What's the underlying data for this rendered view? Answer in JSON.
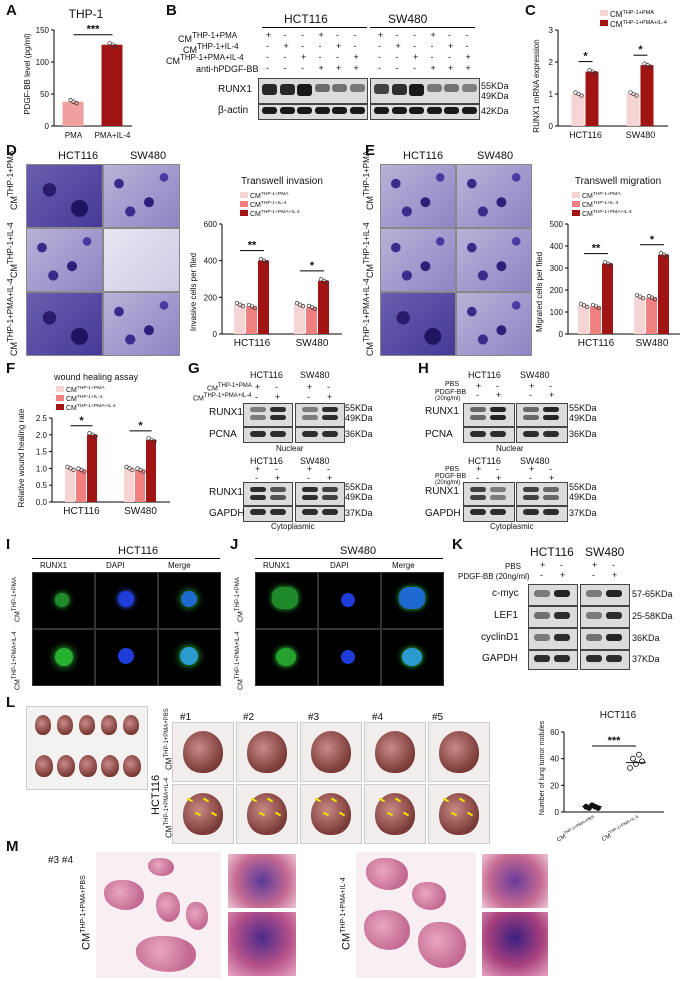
{
  "panels": {
    "A": {
      "label": "A",
      "title": "THP-1",
      "ylabel": "PDGF-BB level (pg/ml)",
      "yticks": [
        "0",
        "50",
        "100",
        "150"
      ],
      "sig": "***"
    },
    "B": {
      "label": "B",
      "lines": [
        "HCT116",
        "SW480"
      ],
      "rows": [
        "CMTHP-1+PMA",
        "CMTHP-1+IL-4",
        "CMTHP-1+PMA+IL-4",
        "anti-hPDGF-BB"
      ],
      "row_cm": [
        "CM",
        "CM",
        "CM"
      ],
      "row_sup": [
        "THP-1+PMA",
        "THP-1+IL-4",
        "THP-1+PMA+IL-4"
      ],
      "row4": "anti-hPDGF-BB",
      "signs": [
        [
          "+",
          "-",
          "-",
          "+",
          "-",
          "-",
          "+",
          "-",
          "-",
          "+",
          "-",
          "-"
        ],
        [
          "-",
          "+",
          "-",
          "-",
          "+",
          "-",
          "-",
          "+",
          "-",
          "-",
          "+",
          "-"
        ],
        [
          "-",
          "-",
          "+",
          "-",
          "-",
          "+",
          "-",
          "-",
          "+",
          "-",
          "-",
          "+"
        ],
        [
          "-",
          "-",
          "-",
          "+",
          "+",
          "+",
          "-",
          "-",
          "-",
          "+",
          "+",
          "+"
        ]
      ],
      "proteins": [
        "RUNX1",
        "β-actin"
      ],
      "sizes": [
        "55KDa",
        "49KDa",
        "42KDa"
      ]
    },
    "C": {
      "label": "C",
      "ylabel": "RUNX1 mRNA expression",
      "yticks": [
        "0",
        "1",
        "2",
        "3"
      ],
      "legend": [
        "THP-1+PMA",
        "THP-1+PMA+IL-4"
      ],
      "categories": [
        "HCT116",
        "SW480"
      ],
      "sig": [
        "*",
        "*"
      ]
    },
    "D": {
      "label": "D",
      "cols": [
        "HCT116",
        "SW480"
      ],
      "row_sup": [
        "THP-1+PMA",
        "THP-1+IL-4",
        "THP-1+PMA+IL-4"
      ],
      "chart_title": "Transwell invasion",
      "ylabel": "Invasive cells per filed",
      "yticks": [
        "0",
        "200",
        "400",
        "600"
      ],
      "legend": [
        "THP-1+PMA",
        "THP-1+IL-4",
        "THP-1+PMA+IL-4"
      ],
      "categories": [
        "HCT116",
        "SW480"
      ],
      "sig": [
        "**",
        "*"
      ]
    },
    "E": {
      "label": "E",
      "cols": [
        "HCT116",
        "SW480"
      ],
      "row_sup": [
        "THP-1+PMA",
        "THP-1+IL-4",
        "THP-1+PMA+IL-4"
      ],
      "chart_title": "Transwell migration",
      "ylabel": "Migrated cells per filed",
      "yticks": [
        "0",
        "100",
        "200",
        "300",
        "400",
        "500"
      ],
      "legend": [
        "THP-1+PMA",
        "THP-1+IL-4",
        "THP-1+PMA+IL-4"
      ],
      "categories": [
        "HCT116",
        "SW480"
      ],
      "sig": [
        "**",
        "*"
      ]
    },
    "F": {
      "label": "F",
      "chart_title": "wound healing assay",
      "ylabel": "Relative wound healing rate",
      "yticks": [
        "0.0",
        "0.5",
        "1.0",
        "1.5",
        "2.0",
        "2.5"
      ],
      "legend": [
        "THP-1+PMA",
        "THP-1+IL-4",
        "THP-1+PMA+IL-4"
      ],
      "categories": [
        "HCT116",
        "SW480"
      ],
      "sig": [
        "*",
        "*"
      ]
    },
    "G": {
      "label": "G",
      "lines": [
        "HCT116",
        "SW480"
      ],
      "rows_sup": [
        "THP-1+PMA",
        "THP-1+PMA+IL-4"
      ],
      "signs_nuc": [
        [
          "+",
          "-",
          "+",
          "-"
        ],
        [
          "-",
          "+",
          "-",
          "+"
        ]
      ],
      "signs_cyt": [
        [
          "+",
          "-",
          "+",
          "-"
        ],
        [
          "-",
          "+",
          "-",
          "+"
        ]
      ],
      "nuclear": [
        "RUNX1",
        "PCNA"
      ],
      "cyto": [
        "RUNX1",
        "GAPDH"
      ],
      "sizes_nuc": [
        "55KDa",
        "49KDa",
        "36KDa"
      ],
      "sizes_cyt": [
        "55KDa",
        "49KDa",
        "37KDa"
      ],
      "fraction_nuc": "Nuclear",
      "fraction_cyt": "Cytoplasmic"
    },
    "H": {
      "label": "H",
      "lines": [
        "HCT116",
        "SW480"
      ],
      "rows": [
        "PBS",
        "PDGF-BB",
        "(20ng/ml)"
      ],
      "signs_nuc": [
        [
          "+",
          "-",
          "+",
          "-"
        ],
        [
          "-",
          "+",
          "-",
          "+"
        ]
      ],
      "signs_cyt": [
        [
          "+",
          "-",
          "+",
          "-"
        ],
        [
          "-",
          "+",
          "-",
          "+"
        ]
      ],
      "nuclear": [
        "RUNX1",
        "PCNA"
      ],
      "cyto": [
        "RUNX1",
        "GAPDH"
      ],
      "sizes_nuc": [
        "55KDa",
        "49KDa",
        "36KDa"
      ],
      "sizes_cyt": [
        "55KDa",
        "49KDa",
        "37KDa"
      ],
      "fraction_nuc": "Nuclear",
      "fraction_cyt": "Cytoplasmic"
    },
    "I": {
      "label": "I",
      "title": "HCT116",
      "cols": [
        "RUNX1",
        "DAPI",
        "Merge"
      ],
      "row_sup": [
        "THP-1+PMA",
        "THP-1+PMA+IL-4"
      ]
    },
    "J": {
      "label": "J",
      "title": "SW480",
      "cols": [
        "RUNX1",
        "DAPI",
        "Merge"
      ],
      "row_sup": [
        "THP-1+PMA",
        "THP-1+PMA+IL-4"
      ]
    },
    "K": {
      "label": "K",
      "lines": [
        "HCT116",
        "SW480"
      ],
      "rows": [
        "PBS",
        "PDGF-BB (20ng/ml)"
      ],
      "signs": [
        [
          "+",
          "-",
          "+",
          "-"
        ],
        [
          "-",
          "+",
          "-",
          "+"
        ]
      ],
      "proteins": [
        "c-myc",
        "LEF1",
        "cyclinD1",
        "GAPDH"
      ],
      "sizes": [
        "57-65KDa",
        "25-58KDa",
        "36KDa",
        "37KDa"
      ]
    },
    "L": {
      "label": "L",
      "mice": [
        "#1",
        "#2",
        "#3",
        "#4",
        "#5"
      ],
      "line": "HCT116",
      "row_sup": [
        "THP-1+PMA+PBS",
        "THP-1+PMA+IL-4"
      ],
      "chart_title": "HCT116",
      "ylabel": "Number of lung tumor nodules",
      "yticks": [
        "0",
        "20",
        "40",
        "60"
      ],
      "xticks_sup": [
        "THP-1+PMA+PBS",
        "THP-1+PMA+IL-4"
      ],
      "sig": "***"
    },
    "M": {
      "label": "M",
      "note": "#3 #4",
      "row_sup": [
        "THP-1+PMA+PBS",
        "THP-1+PMA+IL-4"
      ]
    }
  },
  "cm": "CM",
  "colors": {
    "light_pink": "#f7d4d4",
    "mid_pink": "#f0a0a0",
    "dark_red": "#a01414",
    "salmon": "#f08080"
  },
  "chart_data": [
    {
      "type": "bar",
      "panel": "A",
      "title": "THP-1",
      "categories": [
        "PMA",
        "PMA+IL-4"
      ],
      "values": [
        38,
        127
      ],
      "ylabel": "PDGF-BB level (pg/ml)",
      "ylim": [
        0,
        150
      ]
    },
    {
      "type": "bar",
      "panel": "C",
      "categories": [
        "HCT116",
        "SW480"
      ],
      "series": [
        {
          "name": "CMTHP-1+PMA",
          "values": [
            1.0,
            1.0
          ]
        },
        {
          "name": "CMTHP-1+PMA+IL-4",
          "values": [
            1.7,
            1.9
          ]
        }
      ],
      "ylabel": "RUNX1 mRNA expression",
      "ylim": [
        0,
        3
      ]
    },
    {
      "type": "bar",
      "panel": "D",
      "title": "Transwell invasion",
      "categories": [
        "HCT116",
        "SW480"
      ],
      "series": [
        {
          "name": "CMTHP-1+PMA",
          "values": [
            160,
            160
          ]
        },
        {
          "name": "CMTHP-1+IL-4",
          "values": [
            150,
            145
          ]
        },
        {
          "name": "CMTHP-1+PMA+IL-4",
          "values": [
            400,
            290
          ]
        }
      ],
      "ylabel": "Invasive cells per filed",
      "ylim": [
        0,
        600
      ]
    },
    {
      "type": "bar",
      "panel": "E",
      "title": "Transwell migration",
      "categories": [
        "HCT116",
        "SW480"
      ],
      "series": [
        {
          "name": "CMTHP-1+PMA",
          "values": [
            130,
            170
          ]
        },
        {
          "name": "CMTHP-1+IL-4",
          "values": [
            125,
            165
          ]
        },
        {
          "name": "CMTHP-1+PMA+IL-4",
          "values": [
            320,
            360
          ]
        }
      ],
      "ylabel": "Migrated cells per filed",
      "ylim": [
        0,
        500
      ]
    },
    {
      "type": "bar",
      "panel": "F",
      "title": "wound healing assay",
      "categories": [
        "HCT116",
        "SW480"
      ],
      "series": [
        {
          "name": "CMTHP-1+PMA",
          "values": [
            1.0,
            1.0
          ]
        },
        {
          "name": "CMTHP-1+IL-4",
          "values": [
            0.95,
            0.95
          ]
        },
        {
          "name": "CMTHP-1+PMA+IL-4",
          "values": [
            2.0,
            1.85
          ]
        }
      ],
      "ylabel": "Relative wound healing rate",
      "ylim": [
        0,
        2.5
      ]
    },
    {
      "type": "scatter",
      "panel": "L",
      "title": "HCT116",
      "categories": [
        "CMTHP-1+PMA+PBS",
        "CMTHP-1+PMA+IL-4"
      ],
      "values": [
        4,
        37
      ],
      "points": [
        [
          4,
          3,
          5,
          4,
          3
        ],
        [
          33,
          40,
          36,
          43,
          38
        ]
      ],
      "ylabel": "Number of lung tumor nodules",
      "ylim": [
        0,
        60
      ]
    }
  ]
}
